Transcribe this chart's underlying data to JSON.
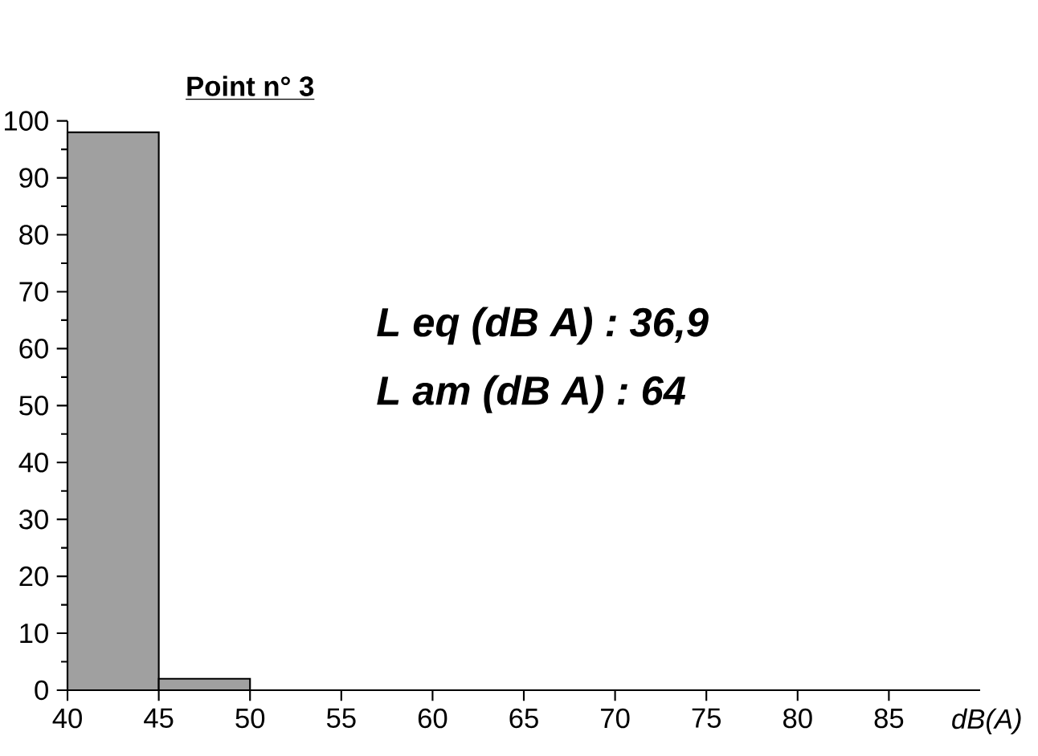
{
  "chart_data": {
    "type": "histogram",
    "title": "Point n° 3",
    "xlabel": "dB(A)",
    "bins": [
      40,
      45,
      50
    ],
    "values": [
      98,
      2
    ],
    "color": "#a0a0a0",
    "xlim": [
      40,
      90
    ],
    "xticks": [
      40,
      45,
      50,
      55,
      60,
      65,
      70,
      75,
      80,
      85
    ],
    "ylim": [
      0,
      100
    ],
    "yticks": [
      0,
      10,
      20,
      30,
      40,
      50,
      60,
      70,
      80,
      90,
      100
    ],
    "annotations": [
      "L eq (dB A) :  36,9",
      "L am (dB A) : 64"
    ]
  }
}
